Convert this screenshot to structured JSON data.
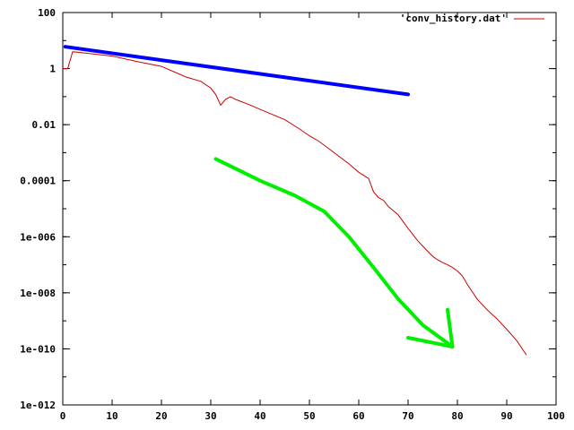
{
  "chart_data": {
    "type": "line",
    "title": "",
    "xlabel": "",
    "ylabel": "",
    "xlim": [
      0,
      100
    ],
    "ylim": [
      1e-12,
      100
    ],
    "yscale": "log",
    "grid": false,
    "legend_position": "top-right",
    "x_ticks": [
      0,
      10,
      20,
      30,
      40,
      50,
      60,
      70,
      80,
      90,
      100
    ],
    "x_tick_labels": [
      "0",
      "10",
      "20",
      "30",
      "40",
      "50",
      "60",
      "70",
      "80",
      "90",
      "100"
    ],
    "y_ticks": [
      100,
      1,
      0.01,
      0.0001,
      1e-06,
      1e-08,
      1e-10,
      1e-12
    ],
    "y_tick_labels": [
      "100",
      "1",
      "0.01",
      "0.0001",
      "1e-006",
      "1e-008",
      "1e-010",
      "1e-012"
    ],
    "series": [
      {
        "name": "'conv_history.dat'",
        "color": "#cc0000",
        "x": [
          0,
          1,
          2,
          5,
          10,
          15,
          20,
          25,
          28,
          30,
          31,
          32,
          33,
          34,
          35,
          38,
          40,
          42,
          45,
          48,
          50,
          52,
          55,
          58,
          60,
          62,
          63,
          64,
          65,
          66,
          68,
          70,
          72,
          74,
          75,
          76,
          77,
          78,
          79,
          80,
          81,
          82,
          84,
          86,
          88,
          90,
          92,
          94
        ],
        "y": [
          1,
          1,
          4,
          3.5,
          2.8,
          1.8,
          1.2,
          0.5,
          0.35,
          0.2,
          0.12,
          0.05,
          0.08,
          0.1,
          0.08,
          0.05,
          0.035,
          0.025,
          0.015,
          0.007,
          0.004,
          0.0025,
          0.001,
          0.0004,
          0.0002,
          0.00012,
          4e-05,
          2.5e-05,
          2e-05,
          1.2e-05,
          6e-06,
          2e-06,
          7e-07,
          3e-07,
          2e-07,
          1.5e-07,
          1.2e-07,
          1e-07,
          8e-08,
          6e-08,
          4e-08,
          2e-08,
          6e-09,
          2.5e-09,
          1.2e-09,
          5e-10,
          2e-10,
          6e-11
        ]
      }
    ],
    "annotations": [
      {
        "type": "line",
        "color": "#0000ff",
        "x": [
          0.5,
          70
        ],
        "y": [
          6,
          0.12
        ]
      },
      {
        "type": "curve",
        "color": "#00ee00",
        "x": [
          31,
          40,
          47,
          53,
          58,
          63,
          68,
          73,
          79
        ],
        "y": [
          0.0006,
          0.0001,
          3e-05,
          8e-06,
          1e-06,
          8e-08,
          6e-09,
          7e-10,
          1.2e-10
        ]
      },
      {
        "type": "arrowhead",
        "color": "#00ee00",
        "x": [
          70,
          79,
          78
        ],
        "y": [
          2.5e-10,
          1.2e-10,
          2.5e-09
        ]
      }
    ]
  }
}
